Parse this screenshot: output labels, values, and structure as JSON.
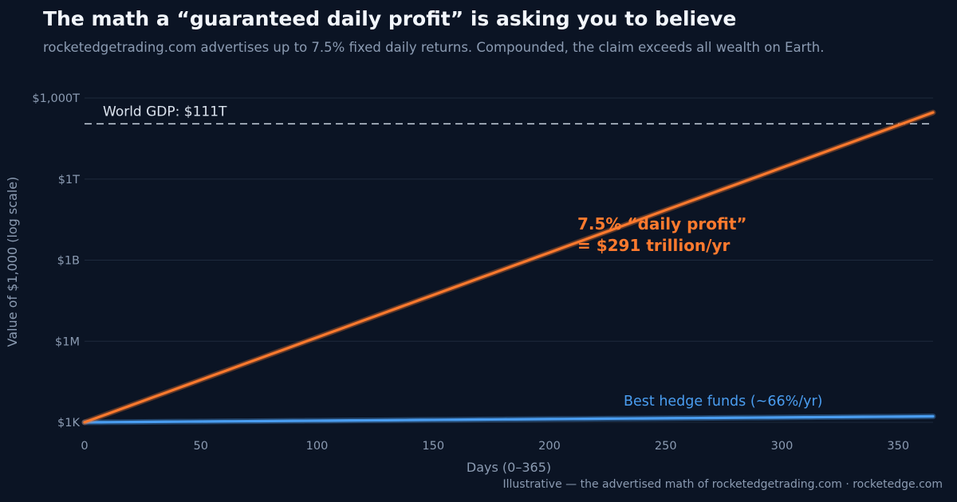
{
  "header": {
    "title": "The math a “guaranteed daily profit” is asking you to believe",
    "subtitle": "rocketedgetrading.com advertises up to 7.5% fixed daily returns. Compounded, the claim exceeds all wealth on Earth."
  },
  "footer": {
    "text": "Illustrative — the advertised math of rocketedgetrading.com  ·  rocketedge.com"
  },
  "colors": {
    "background": "#0b1424",
    "grid": "#1e2a3d",
    "claim_line": "#ff7a2e",
    "hedge_line": "#4a9df0",
    "reference_line": "#c9d3e0",
    "muted_text": "#8b9bb2"
  },
  "chart_data": {
    "type": "line",
    "xlabel": "Days (0–365)",
    "ylabel": "Value of $1,000 (log scale)",
    "xlim": [
      0,
      365
    ],
    "ylim": [
      600,
      1000000000000000.0
    ],
    "yscale": "log",
    "x_ticks": [
      0,
      50,
      100,
      150,
      200,
      250,
      300,
      350
    ],
    "y_ticks": [
      {
        "value": 1000,
        "label": "$1K"
      },
      {
        "value": 1000000,
        "label": "$1M"
      },
      {
        "value": 1000000000,
        "label": "$1B"
      },
      {
        "value": 1000000000000,
        "label": "$1T"
      },
      {
        "value": 1000000000000000,
        "label": "$1,000T"
      }
    ],
    "grid": true,
    "series": [
      {
        "key": "claim",
        "start_value": 1000,
        "daily_rate": 0.075,
        "x_range": [
          0,
          365
        ],
        "label": "7.5% “daily profit”",
        "label_line2": "= $291 trillion/yr"
      },
      {
        "key": "hedge",
        "start_value": 1000,
        "annual_rate": 0.66,
        "x_range": [
          0,
          365
        ],
        "label": "Best hedge funds (~66%/yr)"
      }
    ],
    "reference_lines": [
      {
        "value": 111000000000000,
        "label": "World GDP: $111T"
      }
    ]
  }
}
